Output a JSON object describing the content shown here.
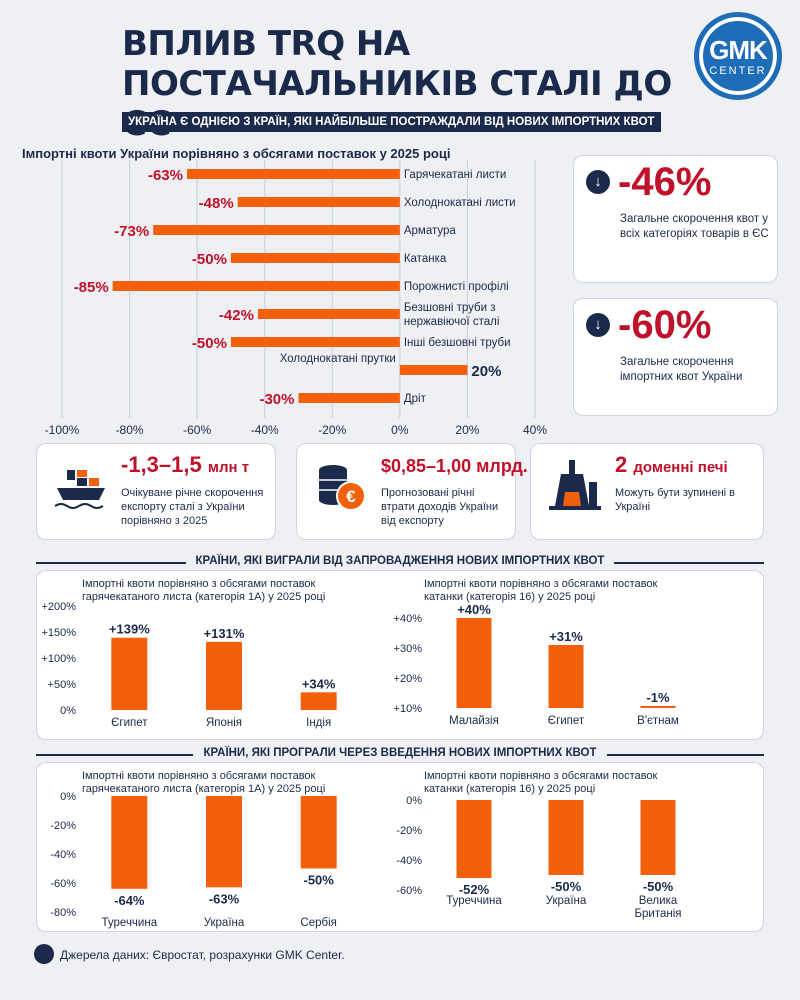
{
  "header": {
    "title": "ВПЛИВ TRQ НА ПОСТАЧАЛЬНИКІВ СТАЛІ ДО ЄС",
    "subtitle": "УКРАЇНА Є ОДНІЄЮ З КРАЇН, ЯКІ НАЙБІЛЬШЕ ПОСТРАЖДАЛИ ВІД НОВИХ ІМПОРТНИХ КВОТ",
    "logo_main": "GMK",
    "logo_sub": "CENTER"
  },
  "stats": [
    {
      "value": "-46%",
      "text": "Загальне скорочення квот у всіх категоріях товарів в ЄС",
      "icon": "arrow-down-icon"
    },
    {
      "value": "-60%",
      "text": "Загальне скорочення імпортних квот України",
      "icon": "arrow-down-icon"
    }
  ],
  "info_cards": [
    {
      "value": "-1,3–1,5",
      "unit": "млн т",
      "text": "Очікуване річне скорочення експорту сталі з України порівняно з 2025",
      "icon": "cargo-ship-icon"
    },
    {
      "value": "$0,85–1,00 млрд.",
      "unit": "",
      "text": "Прогнозовані річні втрати доходів України від експорту",
      "icon": "euro-coins-icon"
    },
    {
      "value": "2",
      "unit": "доменні печі",
      "text": "Можуть бути зупинені в Україні",
      "icon": "blast-furnace-icon"
    }
  ],
  "sections": {
    "winners": "КРАЇНИ, ЯКІ ВИГРАЛИ ВІД ЗАПРОВАДЖЕННЯ НОВИХ ІМПОРТНИХ КВОТ",
    "losers": "КРАЇНИ, ЯКІ ПРОГРАЛИ ЧЕРЕЗ ВВЕДЕННЯ НОВИХ ІМПОРТНИХ КВОТ"
  },
  "footer": {
    "text": "Джерела даних: Євростат, розрахунки GMK Center."
  },
  "colors": {
    "bar": "#f2600c",
    "navy": "#1b2a4a",
    "red": "#c0112b"
  },
  "chart_data": [
    {
      "type": "bar",
      "orientation": "horizontal",
      "title": "Імпортні квоти України порівняно з обсягами поставок у 2025 році",
      "categories": [
        "Гарячекатані листи",
        "Холоднокатані листи",
        "Арматура",
        "Катанка",
        "Порожнисті профілі",
        "Безшовні труби з нержавіючої сталі",
        "Інші безшовні труби",
        "Холоднокатані прутки",
        "Дріт"
      ],
      "values": [
        -63,
        -48,
        -73,
        -50,
        -85,
        -42,
        -50,
        20,
        -30
      ],
      "data_labels": [
        "-63%",
        "-48%",
        "-73%",
        "-50%",
        "-85%",
        "-42%",
        "-50%",
        "20%",
        "-30%"
      ],
      "xlim": [
        -100,
        40
      ],
      "xticks": [
        -100,
        -80,
        -60,
        -40,
        -20,
        0,
        20,
        40
      ],
      "xtick_labels": [
        "-100%",
        "-80%",
        "-60%",
        "-40%",
        "-20%",
        "0%",
        "20%",
        "40%"
      ],
      "grid": true
    },
    {
      "type": "bar",
      "title": "Імпортні квоти порівняно з обсягами поставок гарячекатаного листа (категорія 1А) у 2025 році",
      "categories": [
        "Єгипет",
        "Японія",
        "Індія"
      ],
      "values": [
        139,
        131,
        34
      ],
      "data_labels": [
        "+139%",
        "+131%",
        "+34%"
      ],
      "ylim": [
        0,
        200
      ],
      "yticks": [
        0,
        50,
        100,
        150,
        200
      ],
      "ytick_labels": [
        "0%",
        "+50%",
        "+100%",
        "+150%",
        "+200%"
      ]
    },
    {
      "type": "bar",
      "title": "Імпортні квоти порівняно з обсягами поставок катанки (категорія 16) у 2025 році",
      "categories": [
        "Малайзія",
        "Єгипет",
        "В'єтнам"
      ],
      "values": [
        40,
        31,
        -1
      ],
      "data_labels": [
        "+40%",
        "+31%",
        "-1%"
      ],
      "ylim": [
        10,
        40
      ],
      "yticks": [
        10,
        20,
        30,
        40
      ],
      "ytick_labels": [
        "+10%",
        "+20%",
        "+30%",
        "+40%"
      ]
    },
    {
      "type": "bar",
      "title": "Імпортні квоти порівняно з обсягами поставок гарячекатаного листа (категорія 1А) у 2025 році",
      "categories": [
        "Туреччина",
        "Україна",
        "Сербія"
      ],
      "values": [
        -64,
        -63,
        -50
      ],
      "data_labels": [
        "-64%",
        "-63%",
        "-50%"
      ],
      "ylim": [
        -80,
        0
      ],
      "yticks": [
        0,
        -20,
        -40,
        -60,
        -80
      ],
      "ytick_labels": [
        "0%",
        "-20%",
        "-40%",
        "-60%",
        "-80%"
      ]
    },
    {
      "type": "bar",
      "title": "Імпортні квоти порівняно з обсягами поставок катанки (категорія 16) у 2025 році",
      "categories": [
        "Туреччина",
        "Україна",
        "Велика Британія"
      ],
      "values": [
        -52,
        -50,
        -50
      ],
      "data_labels": [
        "-52%",
        "-50%",
        "-50%"
      ],
      "ylim": [
        -60,
        0
      ],
      "yticks": [
        0,
        -20,
        -40,
        -60
      ],
      "ytick_labels": [
        "0%",
        "-20%",
        "-40%",
        "-60%"
      ]
    }
  ]
}
